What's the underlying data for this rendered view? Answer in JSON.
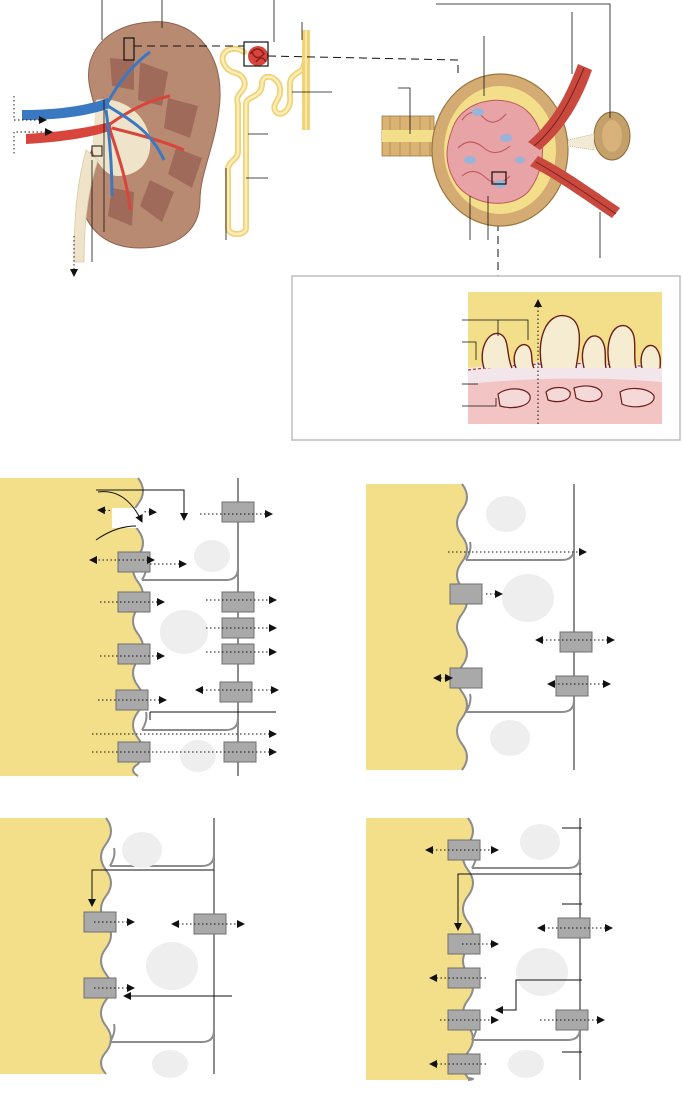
{
  "colors": {
    "lumen": "#f3de8a",
    "tubule": "#f0d277",
    "cortex": "#b98a72",
    "medulla": "#a57060",
    "pelvis": "#efe4c9",
    "artery": "#d8453c",
    "vein": "#3b78c2",
    "transporter": "#a9a9a9",
    "membrane": "#8c8c8c",
    "nucleus": "#eeeeee",
    "capillary": "#f2c4c4",
    "inset_border": "#bdbdbd"
  },
  "icons": {
    "arrow": "dotted-arrow-icon",
    "transporter": "transporter-box-icon",
    "nucleus": "nucleus-icon"
  },
  "panels": {
    "count": 4
  }
}
